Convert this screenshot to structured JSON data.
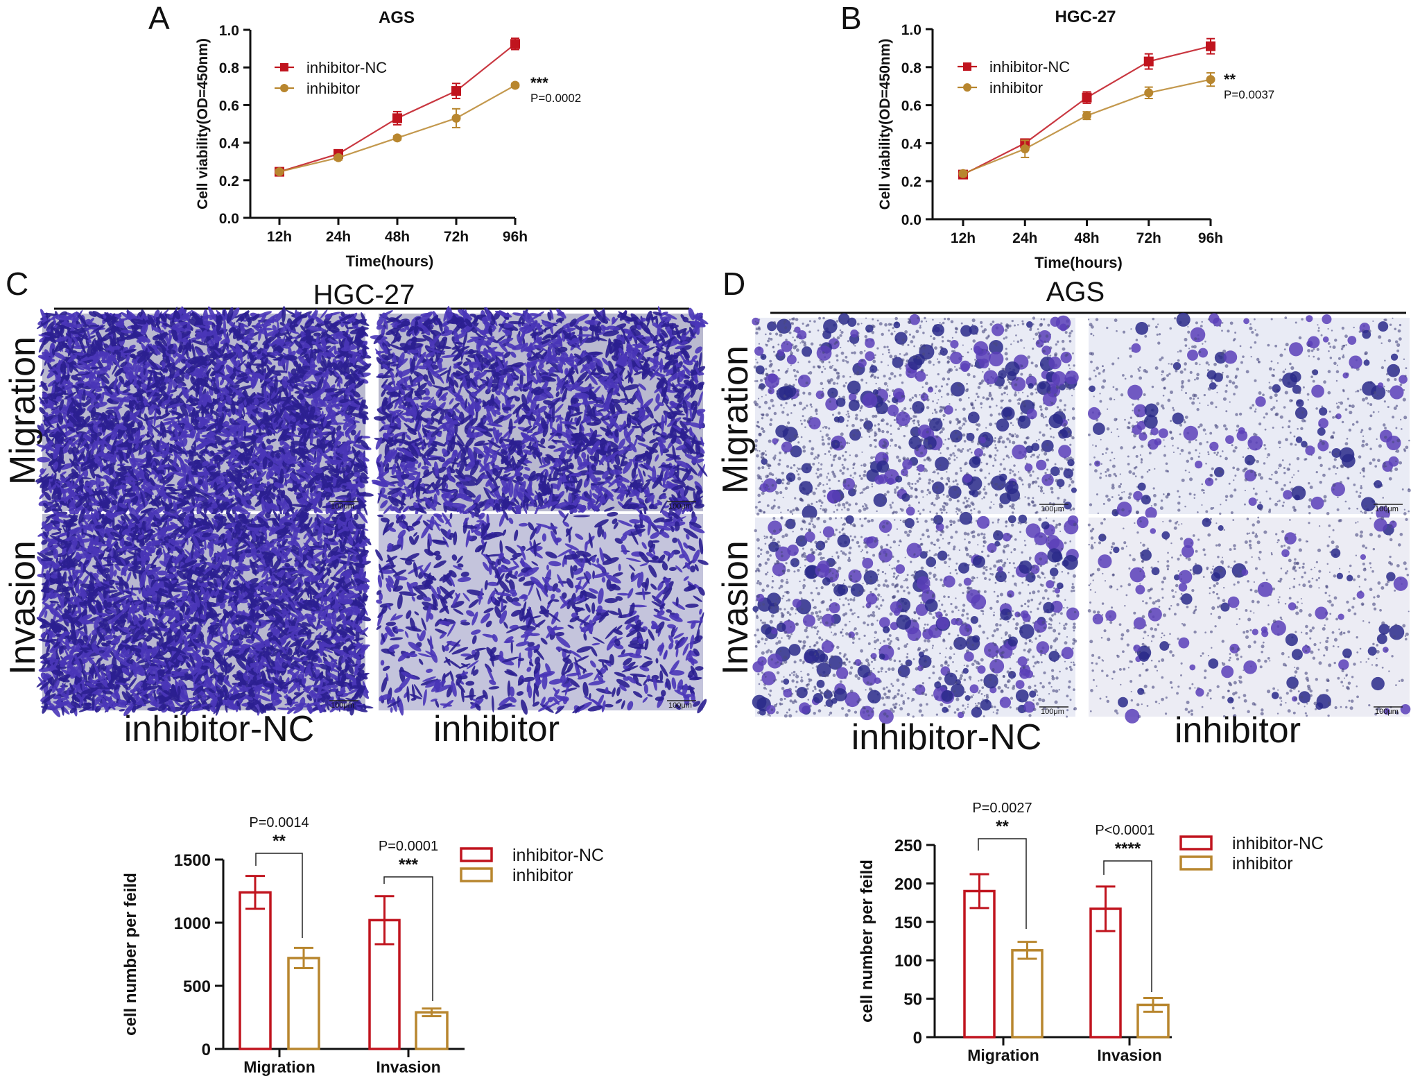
{
  "colors": {
    "inhibitor_nc": "#c0141e",
    "inhibitor": "#b8862e",
    "hgc_bg": "#b9b9cf",
    "ags_bg": "#e9ebf5",
    "stain": "#2a1f8c"
  },
  "panels": {
    "A": {
      "letter": "A"
    },
    "B": {
      "letter": "B"
    },
    "C": {
      "letter": "C",
      "cell_line": "HGC-27",
      "row_labels": [
        "Migration",
        "Invasion"
      ],
      "col_labels": [
        "inhibitor-NC",
        "inhibitor"
      ],
      "scale_bar": "100μm"
    },
    "D": {
      "letter": "D",
      "cell_line": "AGS",
      "row_labels": [
        "Migration",
        "Invasion"
      ],
      "col_labels": [
        "inhibitor-NC",
        "inhibitor"
      ],
      "scale_bar": "100μm"
    }
  },
  "chart_data": [
    {
      "id": "A",
      "type": "line",
      "title": "AGS",
      "xlabel": "Time(hours)",
      "ylabel": "Cell viability(OD=450nm)",
      "categories": [
        "12h",
        "24h",
        "48h",
        "72h",
        "96h"
      ],
      "ylim": [
        0,
        1.0
      ],
      "yticks": [
        "0.0",
        "0.2",
        "0.4",
        "0.6",
        "0.8",
        "1.0"
      ],
      "legend_position": "top-left",
      "series": [
        {
          "name": "inhibitor-NC",
          "marker": "square",
          "values": [
            0.245,
            0.34,
            0.53,
            0.675,
            0.925
          ],
          "errors": [
            0.01,
            0.01,
            0.035,
            0.04,
            0.03
          ]
        },
        {
          "name": "inhibitor",
          "marker": "circle",
          "values": [
            0.245,
            0.32,
            0.425,
            0.53,
            0.705
          ],
          "errors": [
            0.01,
            0.012,
            0.01,
            0.05,
            0.01
          ]
        }
      ],
      "annotation": {
        "stars": "***",
        "p": "P=0.0002"
      }
    },
    {
      "id": "B",
      "type": "line",
      "title": "HGC-27",
      "xlabel": "Time(hours)",
      "ylabel": "Cell viability(OD=450nm)",
      "categories": [
        "12h",
        "24h",
        "48h",
        "72h",
        "96h"
      ],
      "ylim": [
        0,
        1.0
      ],
      "yticks": [
        "0.0",
        "0.2",
        "0.4",
        "0.6",
        "0.8",
        "1.0"
      ],
      "legend_position": "top-left",
      "series": [
        {
          "name": "inhibitor-NC",
          "marker": "square",
          "values": [
            0.235,
            0.4,
            0.64,
            0.83,
            0.91
          ],
          "errors": [
            0.012,
            0.015,
            0.03,
            0.04,
            0.04
          ]
        },
        {
          "name": "inhibitor",
          "marker": "circle",
          "values": [
            0.24,
            0.37,
            0.545,
            0.665,
            0.735
          ],
          "errors": [
            0.012,
            0.045,
            0.02,
            0.03,
            0.035
          ]
        }
      ],
      "annotation": {
        "stars": "**",
        "p": "P=0.0037"
      }
    },
    {
      "id": "C",
      "type": "bar",
      "ylabel": "cell number per feild",
      "categories": [
        "Migration",
        "Invasion"
      ],
      "ylim": [
        0,
        1500
      ],
      "yticks": [
        "0",
        "500",
        "1000",
        "1500"
      ],
      "legend_position": "top-right",
      "series": [
        {
          "name": "inhibitor-NC",
          "values": [
            1240,
            1020
          ],
          "errors": [
            130,
            190
          ]
        },
        {
          "name": "inhibitor",
          "values": [
            720,
            290
          ],
          "errors": [
            80,
            30
          ]
        }
      ],
      "comparisons": [
        {
          "p": "P=0.0014",
          "stars": "**"
        },
        {
          "p": "P=0.0001",
          "stars": "***"
        }
      ]
    },
    {
      "id": "D",
      "type": "bar",
      "ylabel": "cell number per feild",
      "categories": [
        "Migration",
        "Invasion"
      ],
      "ylim": [
        0,
        250
      ],
      "yticks": [
        "0",
        "50",
        "100",
        "150",
        "200",
        "250"
      ],
      "legend_position": "top-right",
      "series": [
        {
          "name": "inhibitor-NC",
          "values": [
            190,
            167
          ],
          "errors": [
            22,
            29
          ]
        },
        {
          "name": "inhibitor",
          "values": [
            113,
            42
          ],
          "errors": [
            11,
            9
          ]
        }
      ],
      "comparisons": [
        {
          "p": "P=0.0027",
          "stars": "**"
        },
        {
          "p": "P<0.0001",
          "stars": "****"
        }
      ]
    }
  ]
}
